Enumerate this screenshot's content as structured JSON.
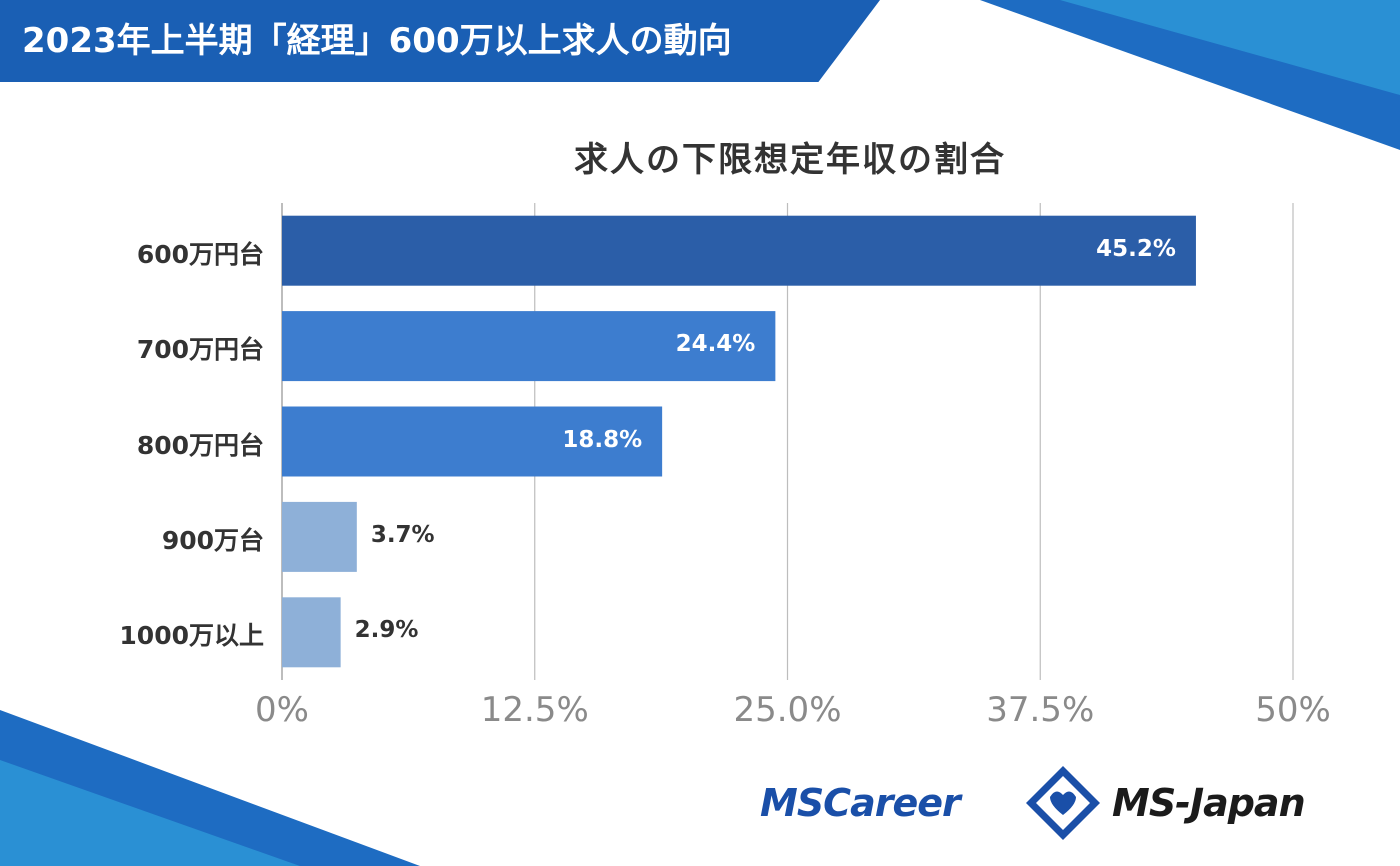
{
  "header": {
    "title": "2023年上半期「経理」600万以上求人の動向"
  },
  "colors": {
    "header_band": "#1a5fb4",
    "bar_dark": "#2b5ea8",
    "bar_mid": "#3d7dcf",
    "bar_light": "#8eb0d8",
    "grid": "#bdbdbd",
    "tick_text": "#8a8a8a"
  },
  "chart_data": {
    "type": "bar",
    "orientation": "horizontal",
    "title": "求人の下限想定年収の割合",
    "categories": [
      "600万円台",
      "700万円台",
      "800万円台",
      "900万台",
      "1000万以上"
    ],
    "values": [
      45.2,
      24.4,
      18.8,
      3.7,
      2.9
    ],
    "value_labels": [
      "45.2%",
      "24.4%",
      "18.8%",
      "3.7%",
      "2.9%"
    ],
    "bar_colors": [
      "#2b5ea8",
      "#3d7dcf",
      "#3d7dcf",
      "#8eb0d8",
      "#8eb0d8"
    ],
    "xlim": [
      0,
      50
    ],
    "x_ticks": [
      0,
      12.5,
      25,
      37.5,
      50
    ],
    "x_tick_labels": [
      "0%",
      "12.5%",
      "25.0%",
      "37.5%",
      "50%"
    ],
    "grid": true,
    "legend": "none"
  },
  "logos": {
    "left": "MSCareer",
    "right": "MS-Japan"
  }
}
